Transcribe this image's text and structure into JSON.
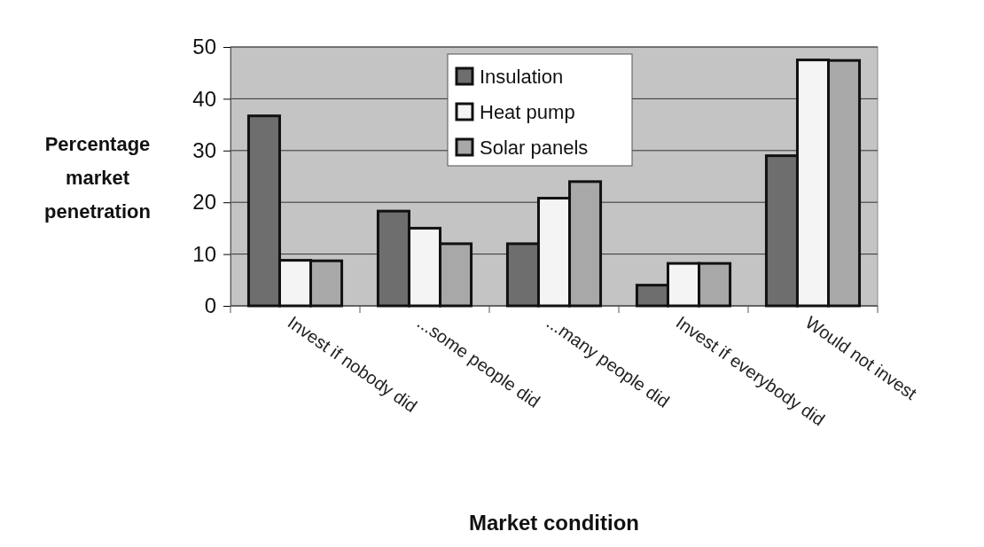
{
  "chart_data": {
    "type": "bar",
    "xlabel": "Market condition",
    "ylabel": "Percentage market penetration",
    "categories": [
      "Invest if nobody did",
      "...some people did",
      "...many people did",
      "Invest if everybody did",
      "Would not invest"
    ],
    "series": [
      {
        "name": "Insulation",
        "color": "#6e6e6e",
        "values": [
          36.7,
          18.3,
          12,
          4,
          29
        ]
      },
      {
        "name": "Heat pump",
        "color": "#f4f4f4",
        "values": [
          8.8,
          15,
          20.8,
          8.2,
          47.5
        ]
      },
      {
        "name": "Solar panels",
        "color": "#a8a8a8",
        "values": [
          8.7,
          12,
          24,
          8.2,
          47.4
        ]
      }
    ],
    "ylim": [
      0,
      50
    ],
    "yticks": [
      0,
      10,
      20,
      30,
      40,
      50
    ],
    "grid": "y",
    "legend": "top"
  }
}
